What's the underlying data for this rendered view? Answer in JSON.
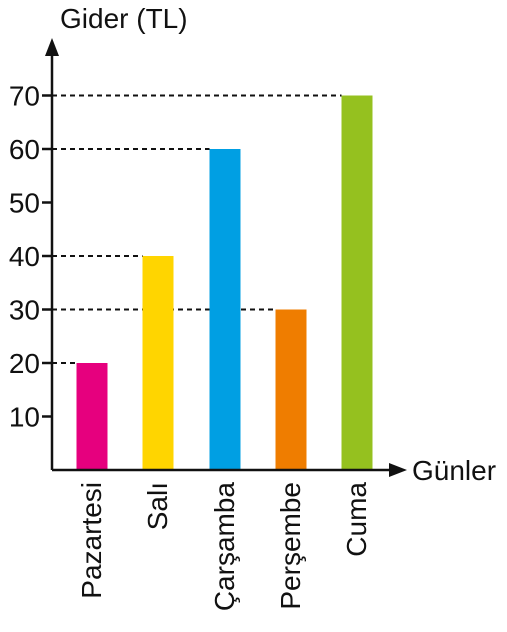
{
  "chart_data": {
    "type": "bar",
    "title": "",
    "ylabel": "Gider (TL)",
    "xlabel": "Günler",
    "categories": [
      "Pazartesi",
      "Salı",
      "Çarşamba",
      "Perşembe",
      "Cuma"
    ],
    "values": [
      20,
      40,
      60,
      30,
      70
    ],
    "colors": [
      "#e6007e",
      "#ffd500",
      "#009fe3",
      "#ef7d00",
      "#95c11f"
    ],
    "yticks": [
      "10",
      "20",
      "30",
      "40",
      "50",
      "60",
      "70"
    ],
    "ylim": [
      0,
      70
    ],
    "grid": false,
    "reference_lines": "dashed lines from y-axis to each bar top"
  }
}
